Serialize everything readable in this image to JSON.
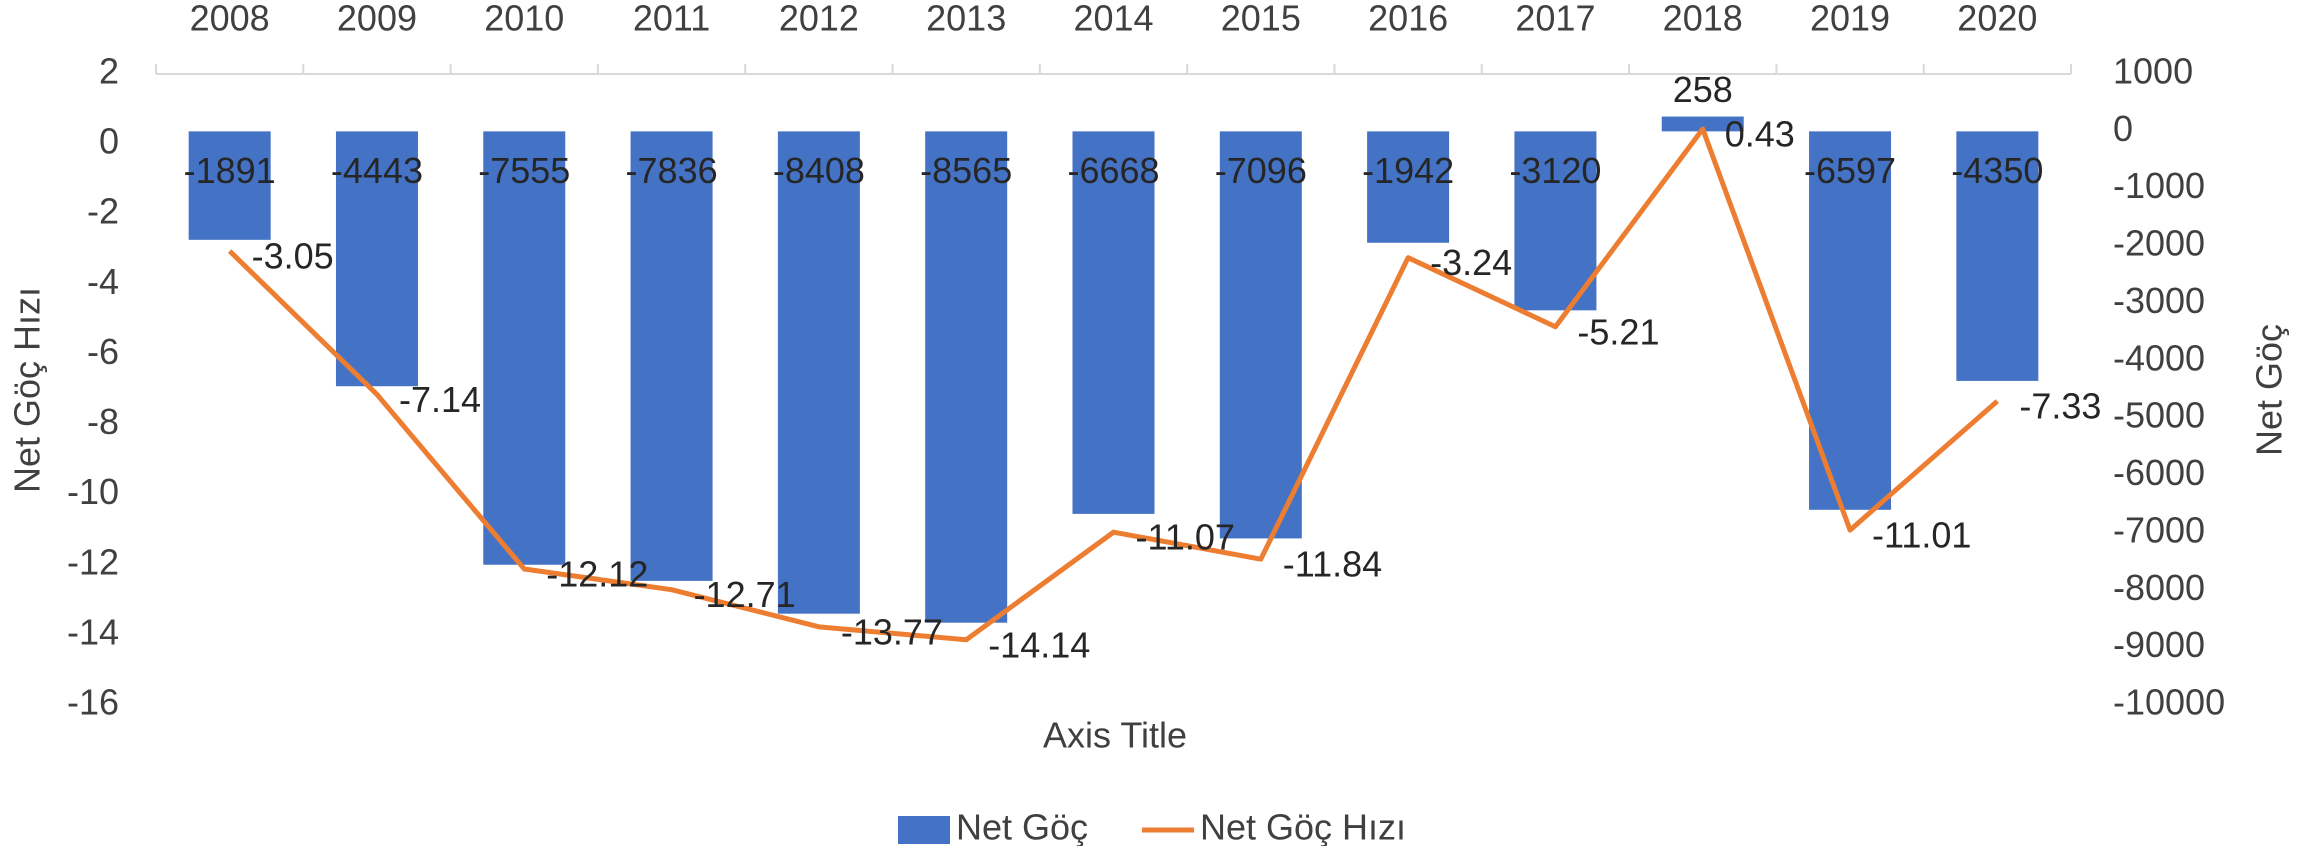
{
  "chart_data": {
    "type": "bar",
    "categories": [
      "2008",
      "2009",
      "2010",
      "2011",
      "2012",
      "2013",
      "2014",
      "2015",
      "2016",
      "2017",
      "2018",
      "2019",
      "2020"
    ],
    "series": [
      {
        "name": "Net Göç",
        "type": "bar",
        "axis": "y2",
        "color": "#4472c4",
        "values": [
          -1891,
          -4443,
          -7555,
          -7836,
          -8408,
          -8565,
          -6668,
          -7096,
          -1942,
          -3120,
          258,
          -6597,
          -4350
        ]
      },
      {
        "name": "Net Göç Hızı",
        "type": "line",
        "color": "#ed7d31",
        "values": [
          -3.05,
          -7.14,
          -12.12,
          -12.71,
          -13.77,
          -14.14,
          -11.07,
          -11.84,
          -3.24,
          -5.21,
          0.43,
          -11.01,
          -7.33
        ]
      }
    ],
    "x_label": "Axis Title",
    "y_label": "Net Göç Hızı",
    "y2_label": "Net Göç",
    "ylim": [
      -16,
      2
    ],
    "yticks": [
      2,
      0,
      -2,
      -4,
      -6,
      -8,
      -10,
      -12,
      -14,
      -16
    ],
    "y2lim": [
      -10000,
      1000
    ],
    "y2ticks": [
      1000,
      0,
      -1000,
      -2000,
      -3000,
      -4000,
      -5000,
      -6000,
      -7000,
      -8000,
      -9000,
      -10000
    ],
    "grid": false,
    "legend": "bottom"
  }
}
